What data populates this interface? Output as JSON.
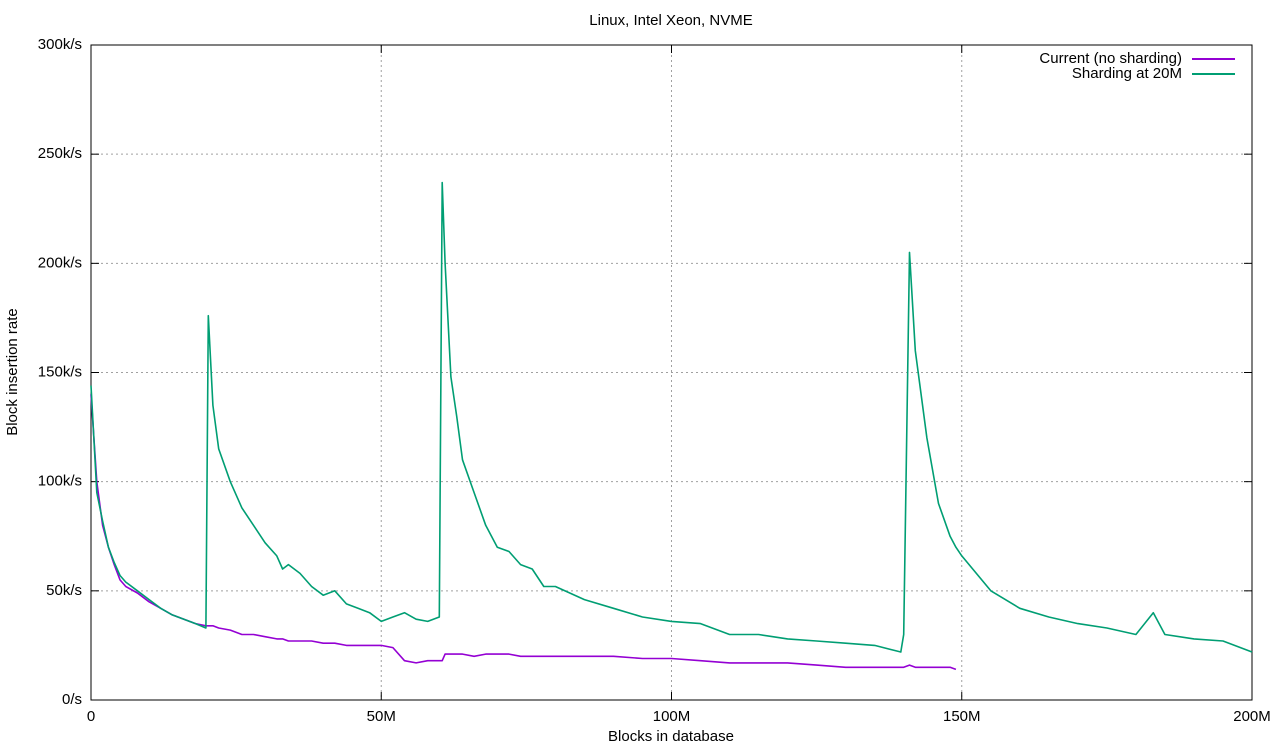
{
  "chart_data": {
    "type": "line",
    "title": "Linux, Intel Xeon, NVME",
    "x_label": "Blocks in database",
    "y_label": "Block insertion rate",
    "x": [
      0,
      1000000,
      2000000,
      3000000,
      4000000,
      5000000,
      6000000,
      8000000,
      10000000,
      12000000,
      14000000,
      16000000,
      18000000,
      19800000,
      20200000,
      21000000,
      22000000,
      24000000,
      26000000,
      28000000,
      30000000,
      32000000,
      33000000,
      34000000,
      36000000,
      38000000,
      40000000,
      42000000,
      44000000,
      46000000,
      48000000,
      50000000,
      52000000,
      54000000,
      56000000,
      58000000,
      60000000,
      60500000,
      61000000,
      62000000,
      63000000,
      64000000,
      66000000,
      68000000,
      70000000,
      72000000,
      74000000,
      76000000,
      78000000,
      80000000,
      85000000,
      90000000,
      95000000,
      100000000,
      105000000,
      110000000,
      115000000,
      120000000,
      125000000,
      130000000,
      135000000,
      139500000,
      140000000,
      141000000,
      142000000,
      144000000,
      146000000,
      148000000,
      149000000,
      150000000,
      155000000,
      160000000,
      165000000,
      170000000,
      175000000,
      180000000,
      183000000,
      185000000,
      190000000,
      195000000,
      200000000
    ],
    "series": [
      {
        "name": "Current (no sharding)",
        "color": "#9400d3",
        "values": [
          140000,
          100000,
          80000,
          70000,
          62000,
          55000,
          52000,
          49000,
          45000,
          42000,
          39000,
          37000,
          35000,
          34000,
          34000,
          34000,
          33000,
          32000,
          30000,
          30000,
          29000,
          28000,
          28000,
          27000,
          27000,
          27000,
          26000,
          26000,
          25000,
          25000,
          25000,
          25000,
          24000,
          18000,
          17000,
          18000,
          18000,
          18000,
          21000,
          21000,
          21000,
          21000,
          20000,
          21000,
          21000,
          21000,
          20000,
          20000,
          20000,
          20000,
          20000,
          20000,
          19000,
          19000,
          18000,
          17000,
          17000,
          17000,
          16000,
          15000,
          15000,
          15000,
          15000,
          16000,
          15000,
          15000,
          15000,
          15000,
          14000,
          null,
          null,
          null,
          null,
          null,
          null,
          null,
          null,
          null,
          null,
          null,
          null
        ]
      },
      {
        "name": "Sharding at 20M",
        "color": "#009e73",
        "values": [
          144000,
          95000,
          82000,
          70000,
          63000,
          57000,
          54000,
          50000,
          46000,
          42000,
          39000,
          37000,
          35000,
          33000,
          176000,
          135000,
          115000,
          100000,
          88000,
          80000,
          72000,
          66000,
          60000,
          62000,
          58000,
          52000,
          48000,
          50000,
          44000,
          42000,
          40000,
          36000,
          38000,
          40000,
          37000,
          36000,
          38000,
          237000,
          200000,
          148000,
          130000,
          110000,
          95000,
          80000,
          70000,
          68000,
          62000,
          60000,
          52000,
          52000,
          46000,
          42000,
          38000,
          36000,
          35000,
          30000,
          30000,
          28000,
          27000,
          26000,
          25000,
          22000,
          30000,
          205000,
          160000,
          120000,
          90000,
          75000,
          70000,
          66000,
          50000,
          42000,
          38000,
          35000,
          33000,
          30000,
          40000,
          30000,
          28000,
          27000,
          22000
        ]
      }
    ],
    "xlim": [
      0,
      200000000
    ],
    "xticks": [
      {
        "value": 0,
        "label": "0"
      },
      {
        "value": 50000000,
        "label": "50M"
      },
      {
        "value": 100000000,
        "label": "100M"
      },
      {
        "value": 150000000,
        "label": "150M"
      },
      {
        "value": 200000000,
        "label": "200M"
      }
    ],
    "ylim": [
      0,
      300000
    ],
    "yticks": [
      {
        "value": 0,
        "label": "0/s"
      },
      {
        "value": 50000,
        "label": "50k/s"
      },
      {
        "value": 100000,
        "label": "100k/s"
      },
      {
        "value": 150000,
        "label": "150k/s"
      },
      {
        "value": 200000,
        "label": "200k/s"
      },
      {
        "value": 250000,
        "label": "250k/s"
      },
      {
        "value": 300000,
        "label": "300k/s"
      }
    ],
    "grid": true,
    "legend": "top-right"
  }
}
